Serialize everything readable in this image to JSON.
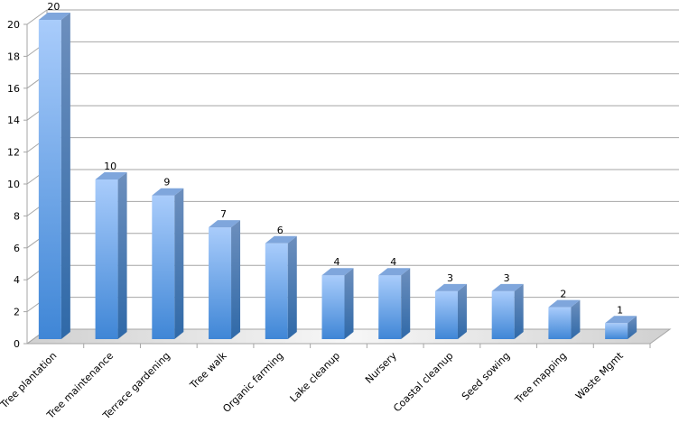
{
  "chart_data": {
    "type": "bar",
    "style": "3d-column",
    "categories": [
      "Tree plantation",
      "Tree maintenance",
      "Terrace gardening",
      "Tree walk",
      "Organic farming",
      "Lake cleanup",
      "Nursery",
      "Coastal cleanup",
      "Seed sowing",
      "Tree mapping",
      "Waste Mgmt"
    ],
    "values": [
      20,
      10,
      9,
      7,
      6,
      4,
      4,
      3,
      3,
      2,
      1
    ],
    "data_labels": [
      "20",
      "10",
      "9",
      "7",
      "6",
      "4",
      "4",
      "3",
      "3",
      "2",
      "1"
    ],
    "ylim": [
      0,
      20
    ],
    "yticks": [
      "0",
      "2",
      "4",
      "6",
      "8",
      "10",
      "12",
      "14",
      "16",
      "18",
      "20"
    ],
    "grid": true,
    "legend": "none",
    "colors": {
      "bar_light": "#a9ccfb",
      "bar_dark": "#3f86d6",
      "bar_side": "#2f69a8",
      "bar_top": "#7fa6dc",
      "grid": "#a6a6a6"
    }
  }
}
